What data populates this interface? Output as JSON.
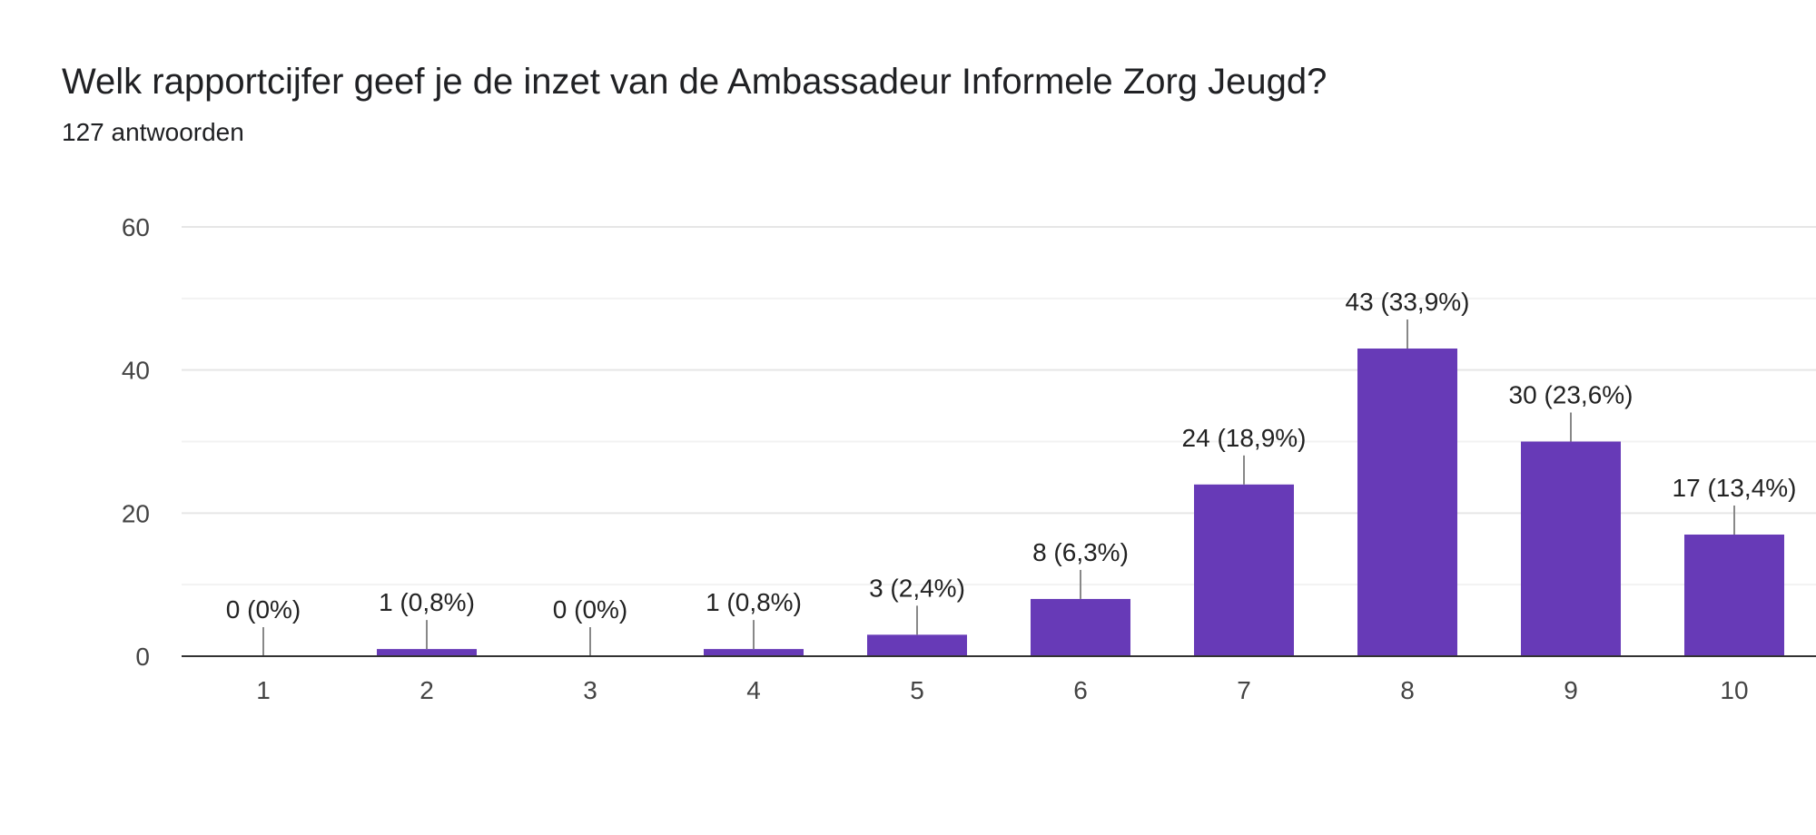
{
  "chart_data": {
    "type": "bar",
    "title": "Welk rapportcijfer geef je de inzet van de Ambassadeur Informele Zorg Jeugd?",
    "subtitle": "127 antwoorden",
    "categories": [
      "1",
      "2",
      "3",
      "4",
      "5",
      "6",
      "7",
      "8",
      "9",
      "10"
    ],
    "values": [
      0,
      1,
      0,
      1,
      3,
      8,
      24,
      43,
      30,
      17
    ],
    "data_labels": [
      "0 (0%)",
      "1 (0,8%)",
      "0 (0%)",
      "1 (0,8%)",
      "3 (2,4%)",
      "8 (6,3%)",
      "24 (18,9%)",
      "43 (33,9%)",
      "30 (23,6%)",
      "17 (13,4%)"
    ],
    "yticks": [
      "0",
      "20",
      "40",
      "60"
    ],
    "ylim": [
      0,
      60
    ],
    "grid": true,
    "bar_color": "#673ab7",
    "xlabel": "",
    "ylabel": ""
  }
}
